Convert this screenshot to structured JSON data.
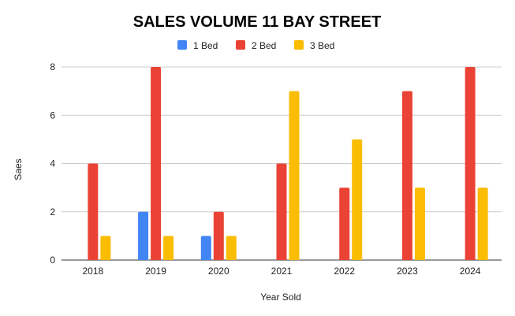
{
  "chart_data": {
    "type": "bar",
    "title": "SALES VOLUME 11 BAY STREET",
    "xlabel": "Year Sold",
    "ylabel": "Saes",
    "categories": [
      "2018",
      "2019",
      "2020",
      "2021",
      "2022",
      "2023",
      "2024"
    ],
    "series": [
      {
        "name": "1 Bed",
        "color": "#4285F4",
        "values": [
          0,
          2,
          1,
          0,
          0,
          0,
          0
        ]
      },
      {
        "name": "2 Bed",
        "color": "#EA4335",
        "values": [
          4,
          8,
          2,
          4,
          3,
          7,
          8
        ]
      },
      {
        "name": "3 Bed",
        "color": "#FBBC04",
        "values": [
          1,
          1,
          1,
          7,
          5,
          3,
          3
        ]
      }
    ],
    "ylim": [
      0,
      8
    ],
    "yticks": [
      "0",
      "2",
      "4",
      "6",
      "8"
    ],
    "grid": true,
    "legend_position": "top"
  }
}
